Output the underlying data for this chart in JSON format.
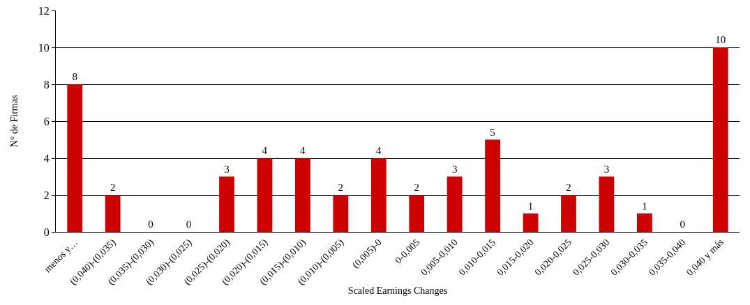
{
  "chart_data": {
    "type": "bar",
    "xlabel": "Scaled Earnings Changes",
    "ylabel": "N° de Firmas",
    "categories": [
      "menos y…",
      "(0,040)-(0,035)",
      "(0,035)-(0,030)",
      "(0,030)-(0,025)",
      "(0,025)-(0,020)",
      "(0,020)-(0,015)",
      "(0,015)-(0,010)",
      "(0,010)-(0,005)",
      "(0,005)-0",
      "0-0,005",
      "0,005-0,010",
      "0,010-0,015",
      "0,015-0,020",
      "0,020-0,025",
      "0,025-0,030",
      "0,030-0,035",
      "0,035-0,040",
      "0,040 y más"
    ],
    "values": [
      8,
      2,
      0,
      0,
      3,
      4,
      4,
      2,
      4,
      2,
      3,
      5,
      1,
      2,
      3,
      1,
      0,
      10
    ],
    "color": "#cc0000",
    "ylim": [
      0,
      12
    ],
    "yticks": [
      0,
      2,
      4,
      6,
      8,
      10,
      12
    ],
    "grid": "y",
    "data_labels": true
  }
}
